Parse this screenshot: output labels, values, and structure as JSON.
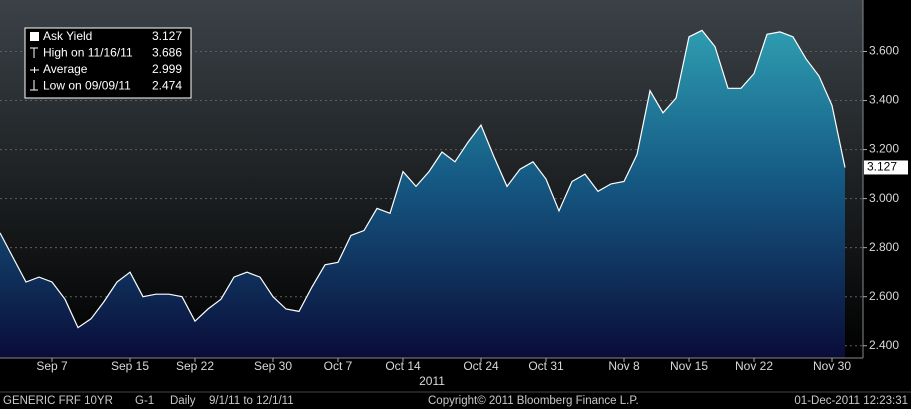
{
  "chart_data": {
    "type": "area",
    "categories": [
      null,
      null,
      null,
      null,
      "Sep 7",
      null,
      null,
      null,
      null,
      null,
      "Sep 15",
      null,
      null,
      null,
      null,
      "Sep 22",
      null,
      null,
      null,
      null,
      null,
      "Sep 30",
      null,
      null,
      null,
      null,
      "Oct 7",
      null,
      null,
      null,
      null,
      "Oct 14",
      null,
      null,
      null,
      null,
      null,
      "Oct 24",
      null,
      null,
      null,
      null,
      "Oct 31",
      null,
      null,
      null,
      null,
      null,
      "Nov 8",
      null,
      null,
      null,
      null,
      "Nov 15",
      null,
      null,
      null,
      null,
      "Nov 22",
      null,
      null,
      null,
      null,
      null,
      "Nov 30",
      null
    ],
    "xlabel": "2011",
    "series": [
      {
        "name": "Ask Yield",
        "color": "#ffffff",
        "values": [
          2.86,
          2.76,
          2.66,
          2.68,
          2.66,
          2.59,
          2.474,
          2.51,
          2.58,
          2.66,
          2.7,
          2.6,
          2.61,
          2.61,
          2.6,
          2.5,
          2.55,
          2.59,
          2.68,
          2.7,
          2.68,
          2.6,
          2.55,
          2.54,
          2.64,
          2.73,
          2.74,
          2.85,
          2.87,
          2.96,
          2.94,
          3.11,
          3.05,
          3.11,
          3.19,
          3.15,
          3.23,
          3.3,
          3.17,
          3.05,
          3.12,
          3.15,
          3.08,
          2.95,
          3.07,
          3.1,
          3.03,
          3.06,
          3.07,
          3.18,
          3.44,
          3.35,
          3.41,
          3.66,
          3.686,
          3.62,
          3.45,
          3.45,
          3.51,
          3.67,
          3.68,
          3.66,
          3.57,
          3.5,
          3.38,
          3.127
        ]
      }
    ],
    "ylim": [
      2.35,
      3.81
    ],
    "yticks": [
      {
        "value": 2.4,
        "label": "2.400"
      },
      {
        "value": 2.6,
        "label": "2.600"
      },
      {
        "value": 2.8,
        "label": "2.800"
      },
      {
        "value": 3.0,
        "label": "3.000"
      },
      {
        "value": 3.2,
        "label": "3.200"
      },
      {
        "value": 3.4,
        "label": "3.400"
      },
      {
        "value": 3.6,
        "label": "3.600"
      }
    ],
    "grid": true,
    "legend": [
      [
        "Ask Yield",
        "3.127"
      ],
      [
        "High on 11/16/11",
        "3.686"
      ],
      [
        "Average",
        "2.999"
      ],
      [
        "Low on 09/09/11",
        "2.474"
      ]
    ],
    "footer": [
      "GENERIC FRF 10YR",
      "G-1",
      "Daily",
      "9/1/11 to 12/1/11",
      "Copyright© 2011 Bloomberg Finance L.P.",
      "01-Dec-2011 12:23:31"
    ]
  }
}
